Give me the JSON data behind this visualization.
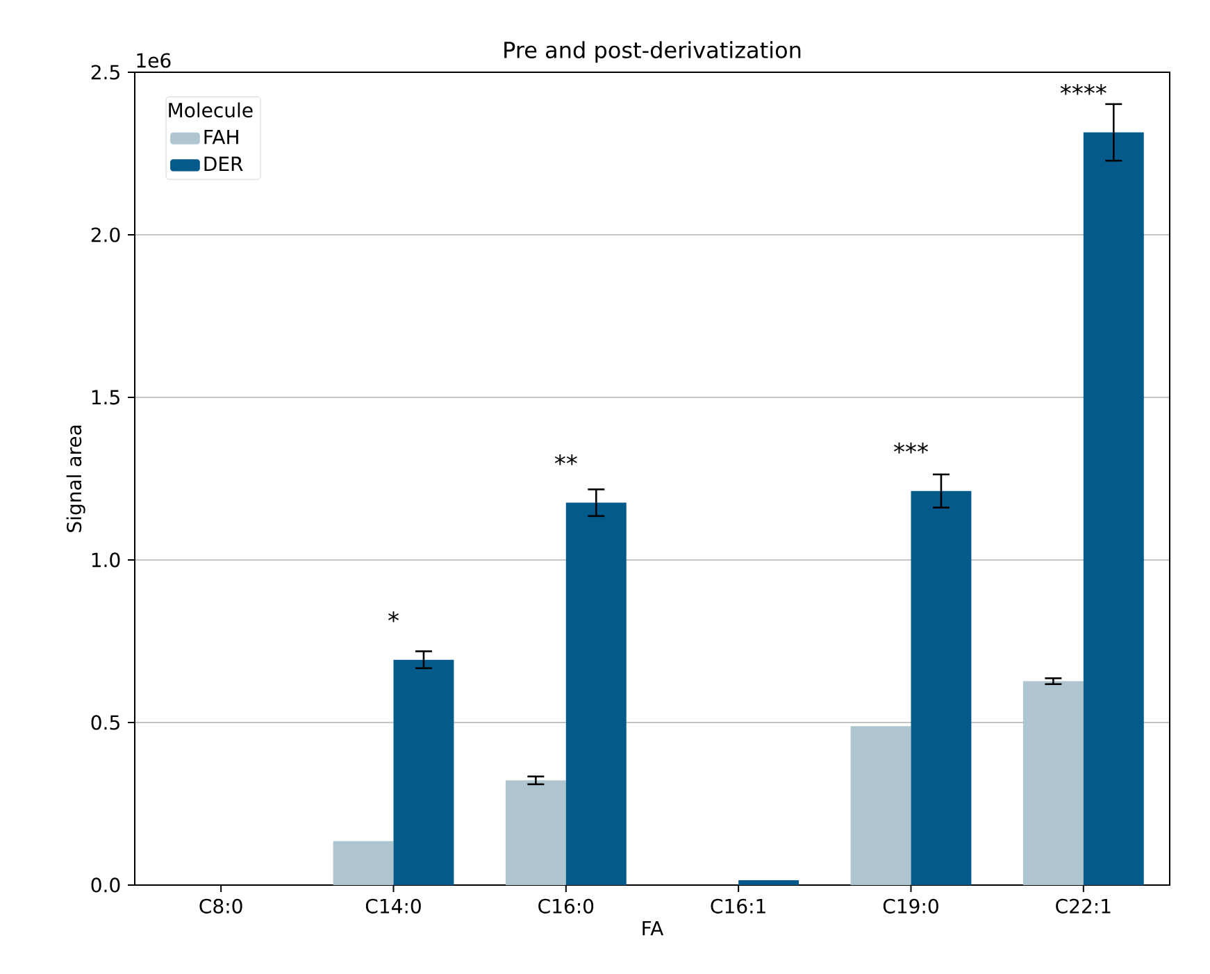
{
  "chart_data": {
    "type": "bar",
    "title": "Pre and post-derivatization",
    "xlabel": "FA",
    "ylabel": "Signal area",
    "legend_title": "Molecule",
    "categories": [
      "C8:0",
      "C14:0",
      "C16:0",
      "C16:1",
      "C19:0",
      "C22:1"
    ],
    "series": [
      {
        "name": "FAH",
        "color": "#afc6d0",
        "values": [
          null,
          0.135,
          0.322,
          null,
          0.489,
          0.627
        ],
        "errors": [
          null,
          null,
          0.012,
          null,
          null,
          0.009
        ]
      },
      {
        "name": "DER",
        "color": "#055a8c",
        "values": [
          null,
          0.693,
          1.176,
          0.015,
          1.212,
          2.315
        ],
        "errors": [
          null,
          0.026,
          0.041,
          null,
          0.051,
          0.087
        ]
      }
    ],
    "ylim": [
      0,
      2.5
    ],
    "yticks": [
      {
        "value": 0,
        "label": "0.0"
      },
      {
        "value": 0.5,
        "label": "0.5"
      },
      {
        "value": 1,
        "label": "1.0"
      },
      {
        "value": 1.5,
        "label": "1.5"
      },
      {
        "value": 2,
        "label": "2.0"
      },
      {
        "value": 2.5,
        "label": "2.5"
      }
    ],
    "grid": "y",
    "legend": "top left",
    "annotations": [
      "1e6",
      {
        "text": "*",
        "x": "C14:0",
        "y": 0.693
      },
      {
        "text": "**",
        "x": "C16:0",
        "y": 1.176
      },
      {
        "text": "***",
        "x": "C19:0",
        "y": 1.212
      },
      {
        "text": "****",
        "x": "C22:1",
        "y": 2.315
      }
    ]
  }
}
